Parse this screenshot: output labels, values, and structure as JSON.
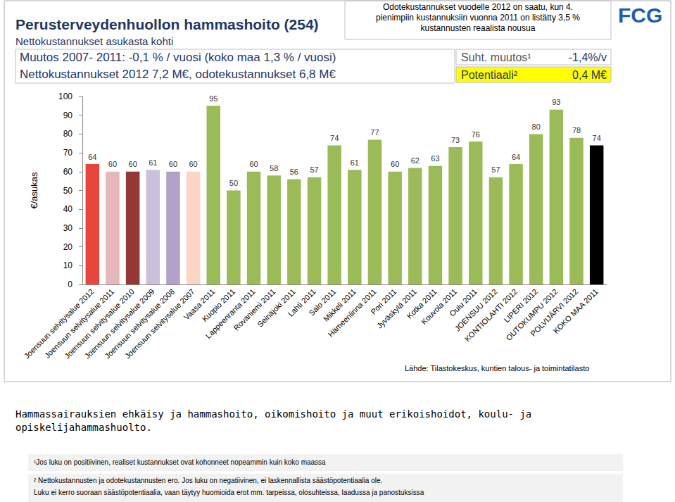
{
  "chart_data": {
    "type": "bar",
    "title": "Perusterveydenhuollon hammashoito (254)",
    "subtitle": "Nettokustannukset asukasta kohti",
    "header_lines": [
      "Muutos 2007- 2011: -0,1 % / vuosi (koko maa 1,3 % / vuosi)",
      "Nettokustannukset 2012 7,2 M€, odotekustannukset 6,8 M€"
    ],
    "note_box": [
      "Odotekustannukset vuodelle 2012 on saatu, kun 4.",
      "pienimpiin kustannuksiin vuonna 2011 on listätty 3,5 %",
      "kustannusten reaalista nousua"
    ],
    "indicators": [
      {
        "label": "Suht. muutos¹",
        "value": "-1,4%/v"
      },
      {
        "label": "Potentiaali²",
        "value": "0,4 M€"
      }
    ],
    "logo": "FCG",
    "y_label": "€/asukas",
    "source": "Lähde: Tilastokeskus, kuntien talous- ja toimintatilasto",
    "description": "Hammassairauksien ehkäisy ja hammashoito, oikomishoito ja muut erikoishoidot, koulu- ja opiskelijahammashuolto.",
    "footnotes": [
      "¹Jos luku on positiivinen, realiset kustannukset ovat kohonneet nopeammin kuin koko maassa",
      "² Nettokustannusten ja odotekustannusten ero. Jos luku on negatiivinen, ei laskennallista säästöpotentiaalia ole.",
      "Luku ei kerro suoraan säästöpotentiaalia, vaan täytyy huomioida erot mm. tarpeissa, olosuhteissa, laadussa ja panostuksissa"
    ],
    "categories": [
      "Joensuun selvitysalue 2012",
      "Joensuun selvitysalue 2011",
      "Joensuun selvitysalue 2010",
      "Joensuun selvitysalue 2009",
      "Joensuun selvitysalue 2008",
      "Joensuun selvitysalue 2007",
      "Vaasa 2011",
      "Kuopio 2011",
      "Lappeenranta 2011",
      "Rovaniemi 2011",
      "Seinäjoki 2011",
      "Lahti 2011",
      "Salo 2011",
      "Mikkeli 2011",
      "Hämeenlinna 2011",
      "Pori 2011",
      "Jyväskylä 2011",
      "Kotka 2011",
      "Kouvola 2011",
      "Oulu 2011",
      "JOENSUU 2012",
      "KONTIOLAHTI 2012",
      "LIPERI 2012",
      "OUTOKUMPU 2012",
      "POLVIJÄRVI 2012",
      "KOKO MAA 2011"
    ],
    "values": [
      64,
      60,
      60,
      61,
      60,
      60,
      95,
      50,
      60,
      58,
      56,
      57,
      74,
      61,
      77,
      60,
      62,
      63,
      73,
      76,
      57,
      64,
      80,
      93,
      78,
      74
    ],
    "colors": [
      "#e8453c",
      "#e6b9b8",
      "#953735",
      "#ccc1da",
      "#b3a2c7",
      "#fcd5c5",
      "#9bbb59",
      "#9bbb59",
      "#9bbb59",
      "#9bbb59",
      "#9bbb59",
      "#9bbb59",
      "#9bbb59",
      "#9bbb59",
      "#9bbb59",
      "#9bbb59",
      "#9bbb59",
      "#9bbb59",
      "#9bbb59",
      "#9bbb59",
      "#9bbb59",
      "#9bbb59",
      "#9bbb59",
      "#9bbb59",
      "#9bbb59",
      "#000000"
    ],
    "ylim": [
      0,
      100
    ],
    "yticks": [
      0,
      10,
      20,
      30,
      40,
      50,
      60,
      70,
      80,
      90,
      100
    ],
    "grid": false,
    "data_labels": true
  }
}
